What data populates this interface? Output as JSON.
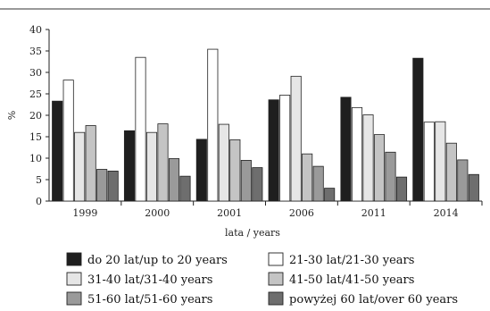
{
  "chart_data": {
    "type": "bar",
    "title": "",
    "xlabel": "lata / years",
    "ylabel": "%",
    "ylim": [
      0,
      40
    ],
    "yticks": [
      0,
      5,
      10,
      15,
      20,
      25,
      30,
      35,
      40
    ],
    "grid": false,
    "legend_position": "bottom",
    "categories": [
      "1999",
      "2000",
      "2001",
      "2006",
      "2011",
      "2014"
    ],
    "series": [
      {
        "name": "do 20 lat/up to 20 years",
        "color": "#1f1f1f",
        "values": [
          23.3,
          16.4,
          14.4,
          23.6,
          24.2,
          33.3
        ]
      },
      {
        "name": "21-30 lat/21-30 years",
        "color": "#ffffff",
        "values": [
          28.2,
          33.5,
          35.4,
          24.7,
          21.8,
          18.4
        ]
      },
      {
        "name": "31-40 lat/31-40 years",
        "color": "#e6e6e6",
        "values": [
          16.0,
          16.0,
          17.9,
          29.1,
          20.1,
          18.5
        ]
      },
      {
        "name": "41-50 lat/41-50 years",
        "color": "#c4c4c4",
        "values": [
          17.6,
          18.0,
          14.3,
          11.0,
          15.5,
          13.5
        ]
      },
      {
        "name": "51-60 lat/51-60 years",
        "color": "#9a9a9a",
        "values": [
          7.4,
          9.9,
          9.5,
          8.1,
          11.4,
          9.6
        ]
      },
      {
        "name": "powyżej 60 lat/over 60 years",
        "color": "#6e6e6e",
        "values": [
          7.0,
          5.8,
          7.8,
          3.0,
          5.6,
          6.2
        ]
      }
    ]
  }
}
